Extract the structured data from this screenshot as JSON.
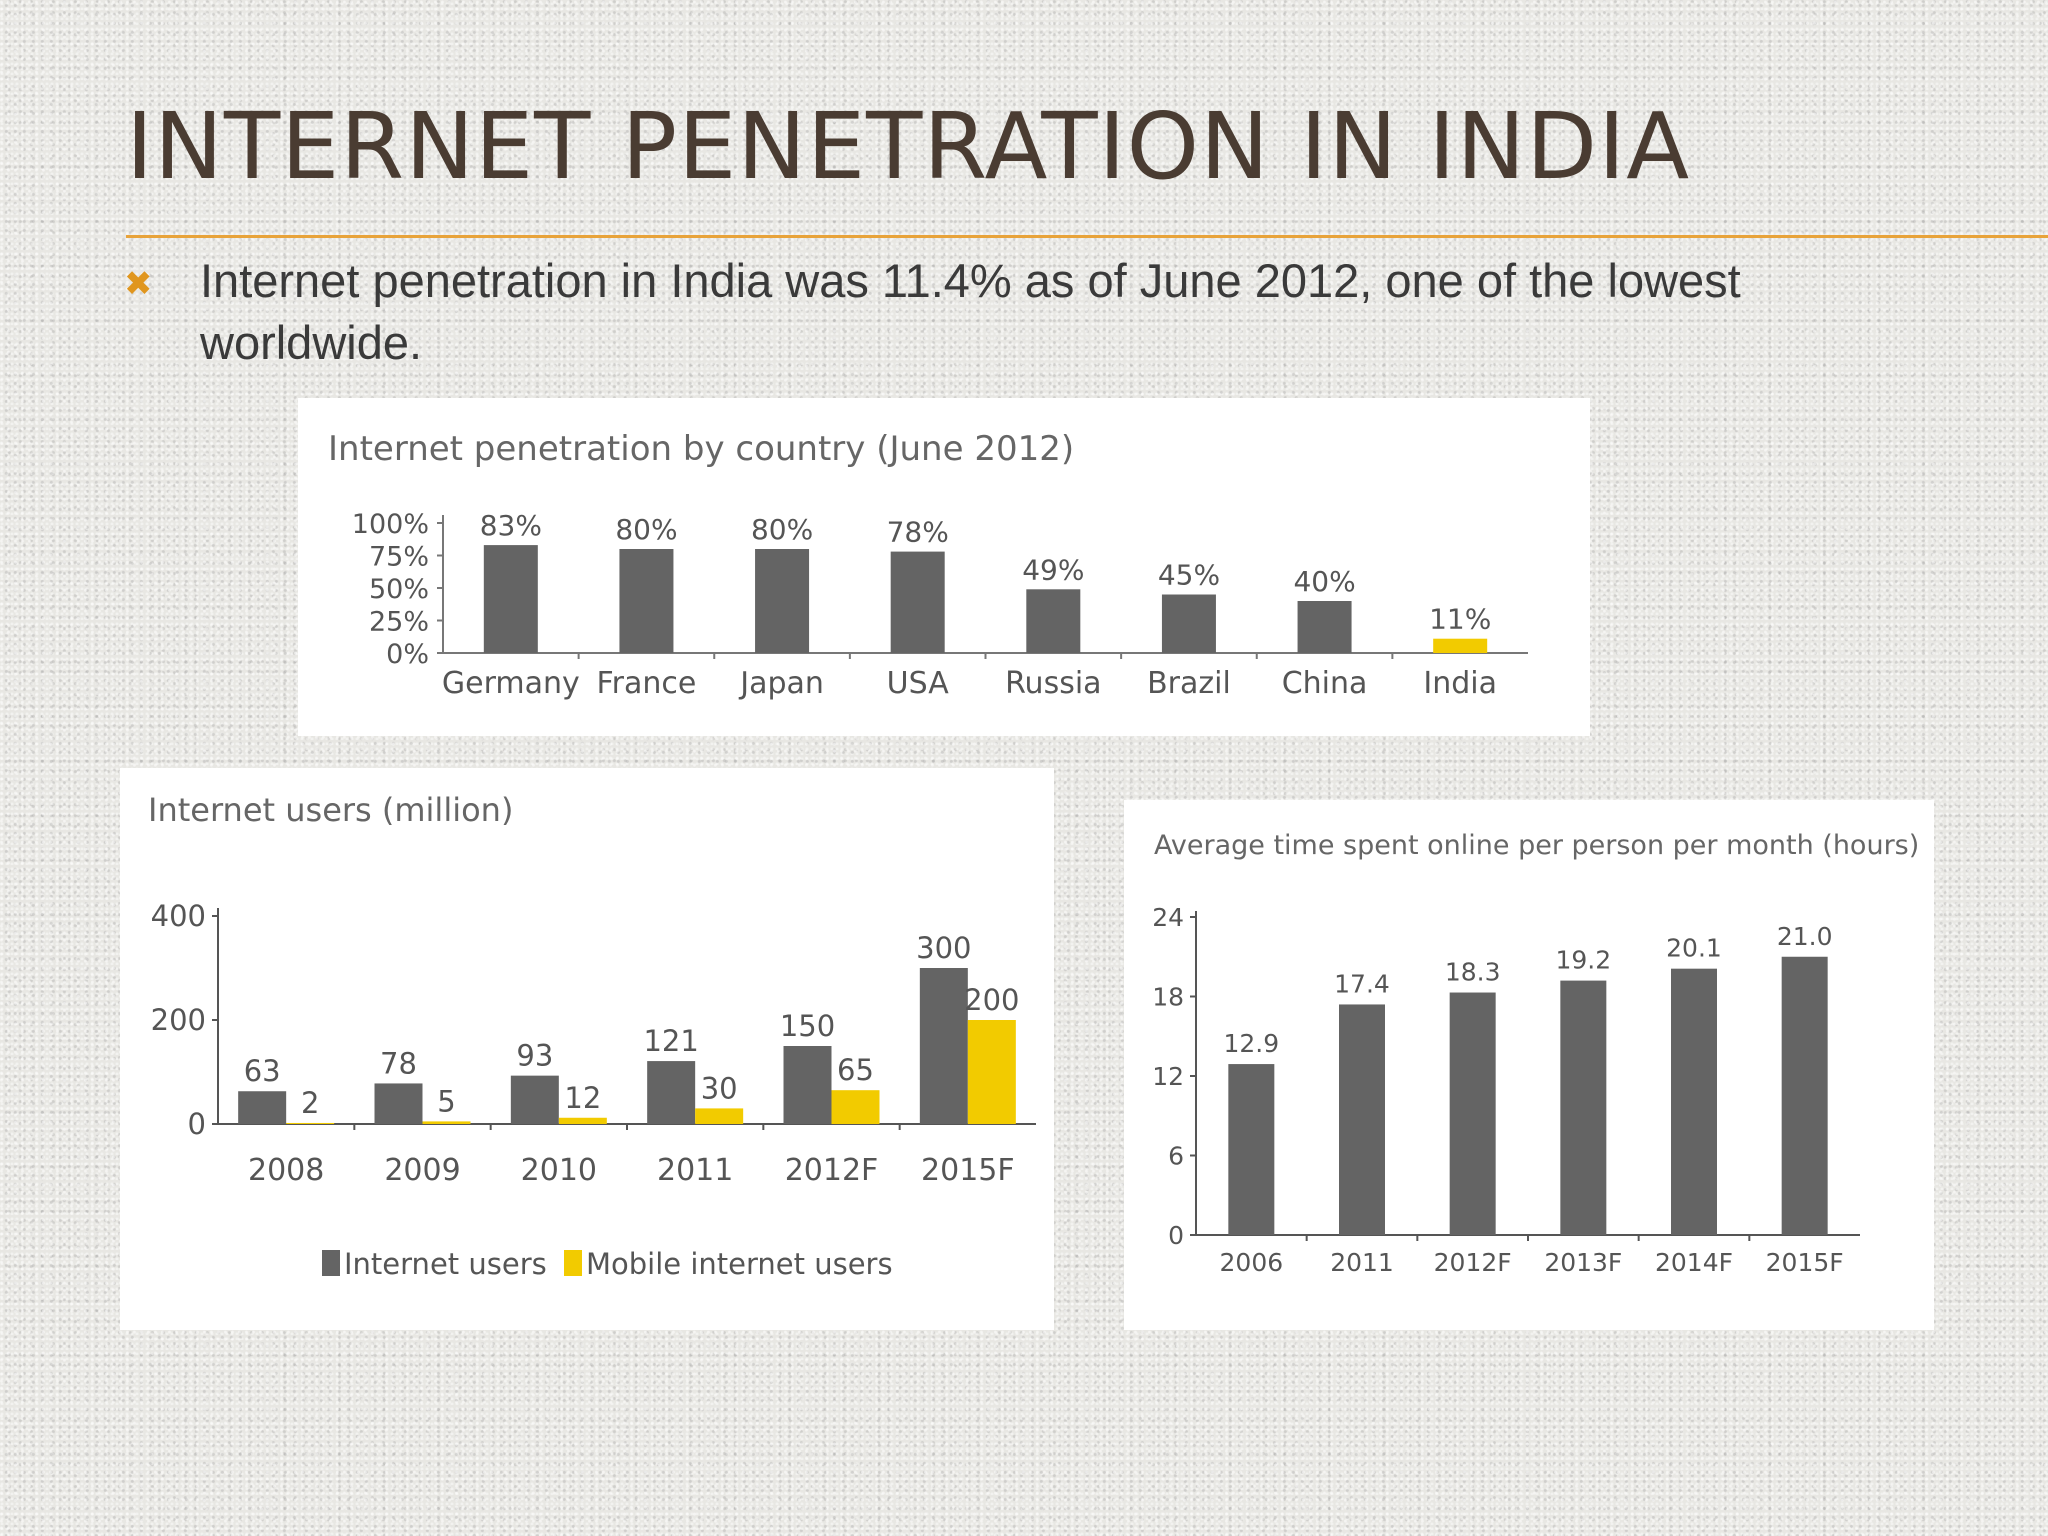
{
  "slide": {
    "title": "INTERNET PENETRATION IN INDIA",
    "bullet": "Internet penetration in India was 11.4% as of June 2012, one of the lowest worldwide.",
    "bullet_icon": "cross-bullet-icon"
  },
  "colors": {
    "gray": "#646464",
    "yellow": "#f2cb00",
    "accent": "#e8a33a"
  },
  "chart_data": [
    {
      "type": "bar",
      "title": "Internet penetration by country (June 2012)",
      "categories": [
        "Germany",
        "France",
        "Japan",
        "USA",
        "Russia",
        "Brazil",
        "China",
        "India"
      ],
      "values": [
        83,
        80,
        80,
        78,
        49,
        45,
        40,
        11
      ],
      "data_labels": [
        "83%",
        "80%",
        "80%",
        "78%",
        "49%",
        "45%",
        "40%",
        "11%"
      ],
      "highlight": "India",
      "yticks": [
        "100%",
        "75%",
        "50%",
        "25%",
        "0%"
      ],
      "ylim": [
        0,
        100
      ]
    },
    {
      "type": "bar",
      "title": "Internet users (million)",
      "categories": [
        "2008",
        "2009",
        "2010",
        "2011",
        "2012F",
        "2015F"
      ],
      "series": [
        {
          "name": "Internet users",
          "values": [
            63,
            78,
            93,
            121,
            150,
            300
          ]
        },
        {
          "name": "Mobile internet users",
          "values": [
            2,
            5,
            12,
            30,
            65,
            200
          ]
        }
      ],
      "yticks": [
        "400",
        "200",
        "0"
      ],
      "ylim": [
        0,
        400
      ],
      "legend": "bottom"
    },
    {
      "type": "bar",
      "title": "Average time spent online per person per month (hours)",
      "categories": [
        "2006",
        "2011",
        "2012F",
        "2013F",
        "2014F",
        "2015F"
      ],
      "values": [
        12.9,
        17.4,
        18.3,
        19.2,
        20.1,
        21.0
      ],
      "data_labels": [
        "12.9",
        "17.4",
        "18.3",
        "19.2",
        "20.1",
        "21.0"
      ],
      "yticks": [
        "24",
        "18",
        "12",
        "6",
        "0"
      ],
      "ylim": [
        0,
        24
      ]
    }
  ]
}
